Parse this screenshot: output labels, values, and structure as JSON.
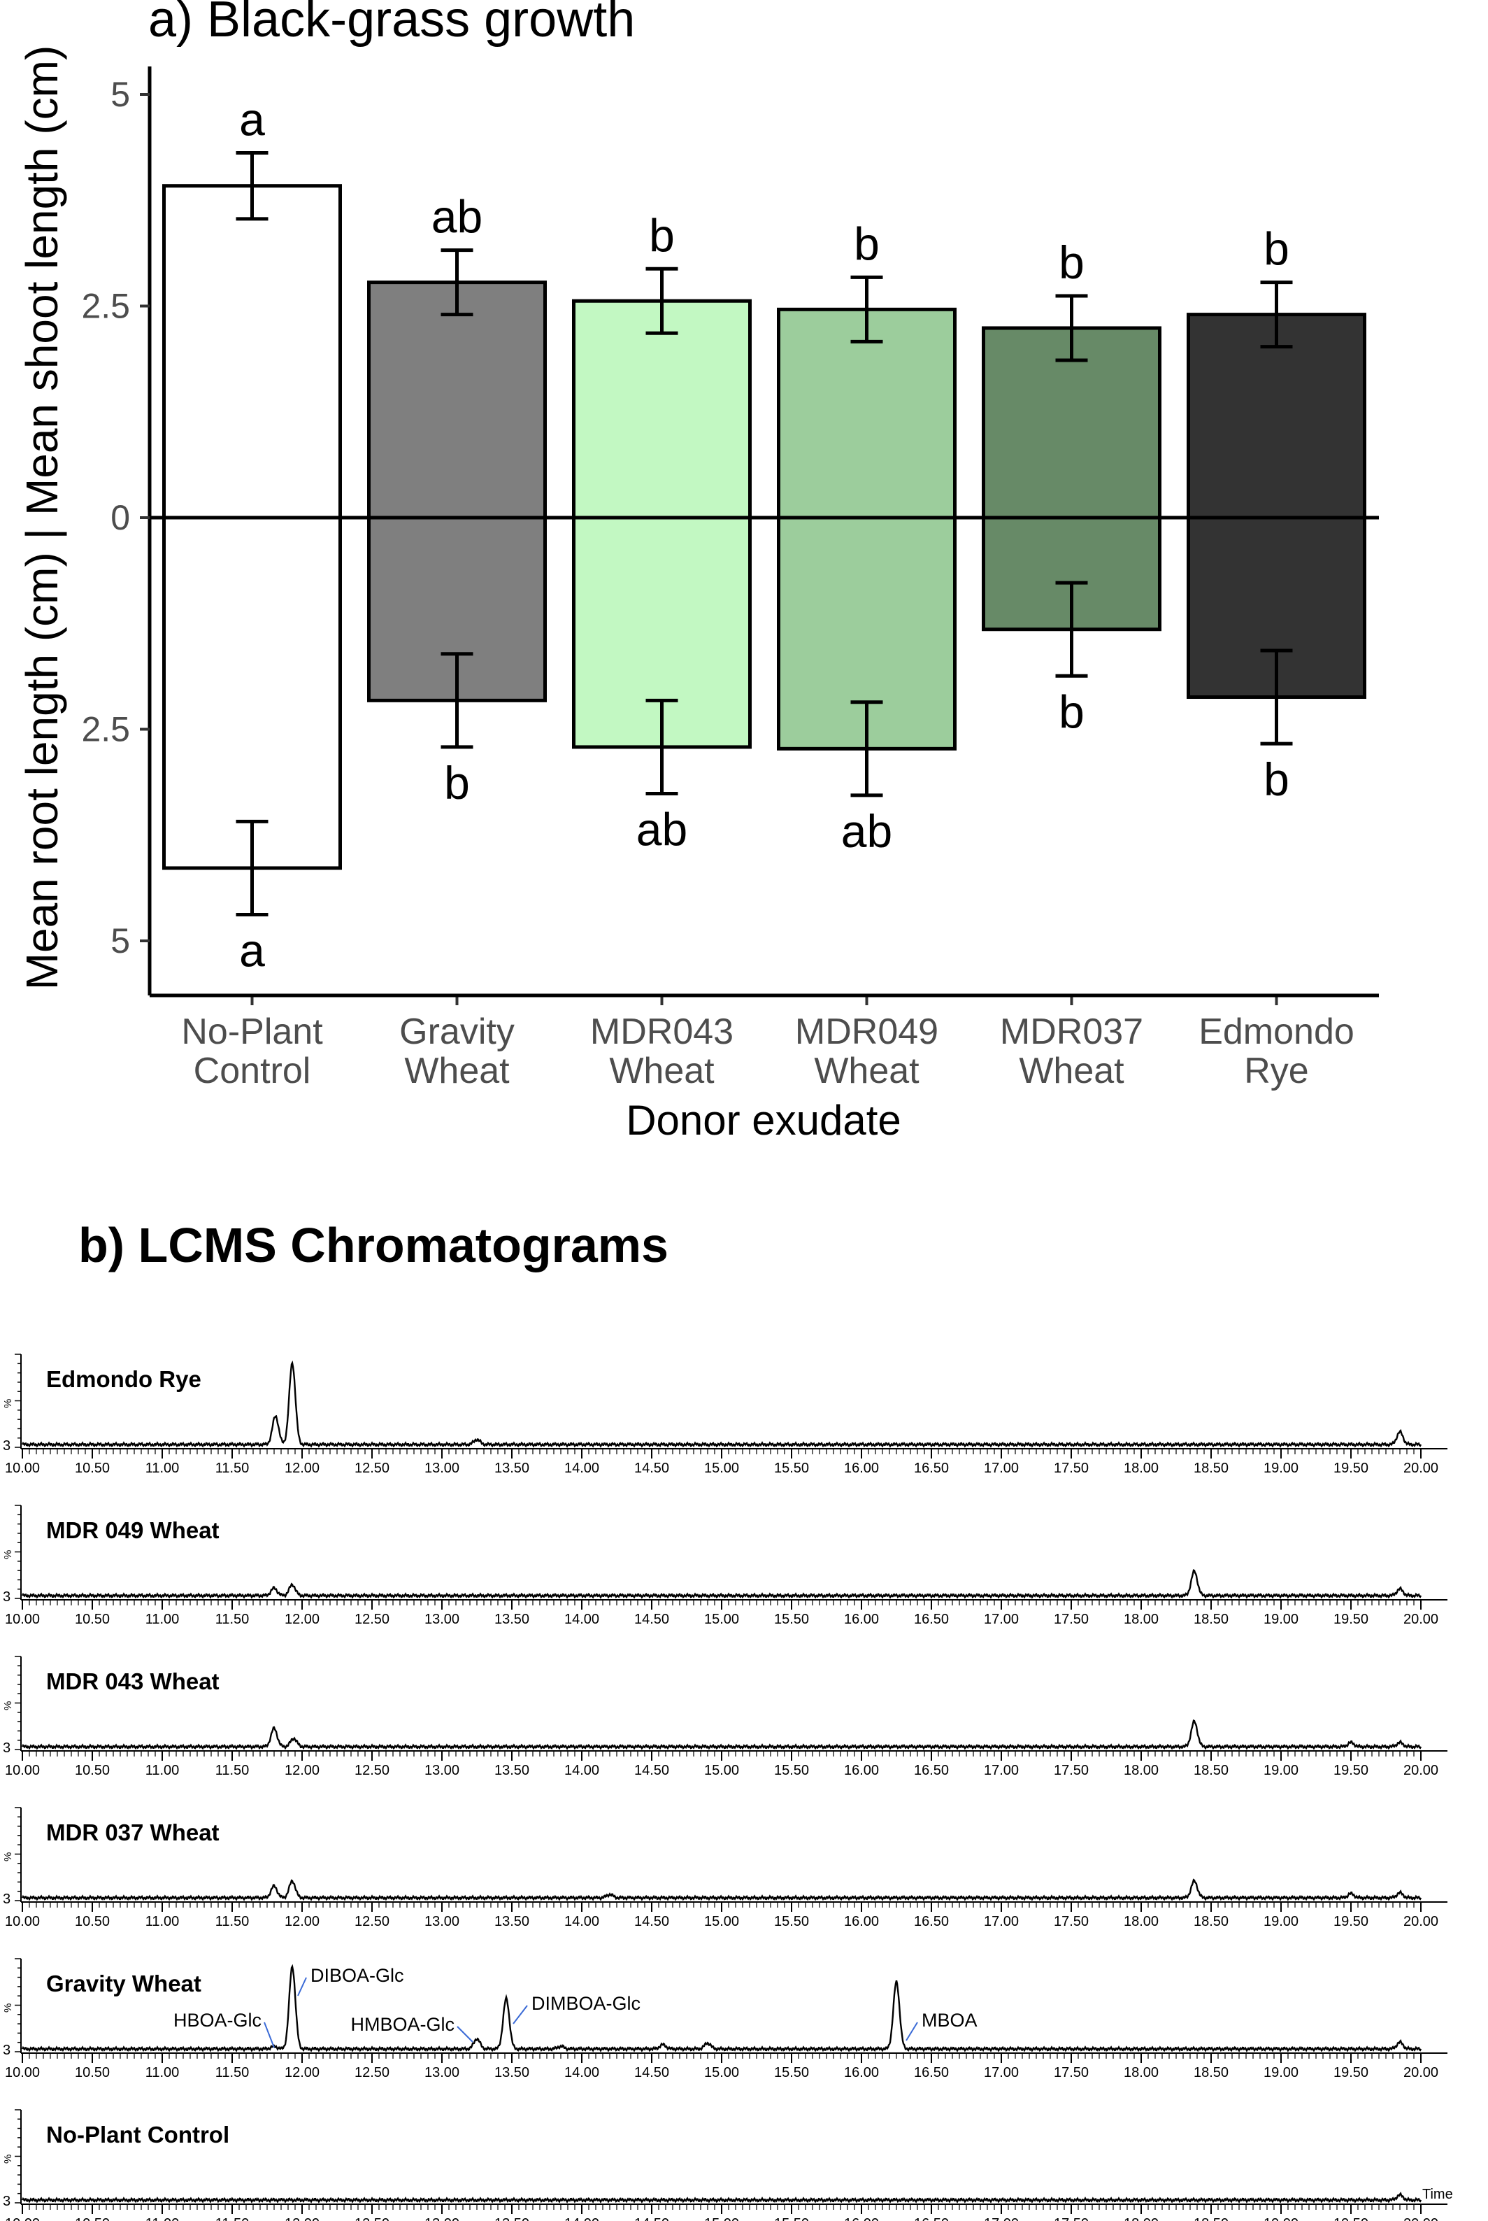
{
  "chart_data": [
    {
      "type": "bar",
      "title": "a) Black-grass growth",
      "xlabel": "Donor exudate",
      "ylabel": "Mean root length (cm) | Mean shoot length (cm)",
      "ylim": [
        -5.6,
        5.3
      ],
      "yticks": [
        {
          "value": 5,
          "label": "5"
        },
        {
          "value": 2.5,
          "label": "2.5"
        },
        {
          "value": 0,
          "label": "0"
        },
        {
          "value": -2.5,
          "label": "2.5"
        },
        {
          "value": -5,
          "label": "5"
        }
      ],
      "categories": [
        {
          "line1": "No-Plant",
          "line2": "Control"
        },
        {
          "line1": "Gravity",
          "line2": "Wheat"
        },
        {
          "line1": "MDR043",
          "line2": "Wheat"
        },
        {
          "line1": "MDR049",
          "line2": "Wheat"
        },
        {
          "line1": "MDR037",
          "line2": "Wheat"
        },
        {
          "line1": "Edmondo",
          "line2": "Rye"
        }
      ],
      "colors": [
        "#ffffff",
        "#7f7f7f",
        "#c2f8c2",
        "#9ccd9c",
        "#678a67",
        "#333333"
      ],
      "series": [
        {
          "name": "Mean shoot length (cm)",
          "values": [
            3.92,
            2.78,
            2.56,
            2.46,
            2.24,
            2.4
          ],
          "errors": [
            0.39,
            0.38,
            0.38,
            0.38,
            0.38,
            0.38
          ],
          "letters": [
            "a",
            "ab",
            "b",
            "b",
            "b",
            "b"
          ]
        },
        {
          "name": "Mean root length (cm)",
          "values": [
            -4.14,
            -2.16,
            -2.71,
            -2.73,
            -1.32,
            -2.12
          ],
          "errors": [
            0.55,
            0.55,
            0.55,
            0.55,
            0.55,
            0.55
          ],
          "letters": [
            "a",
            "b",
            "ab",
            "ab",
            "b",
            "b"
          ]
        }
      ],
      "grid": false,
      "legend": "none"
    },
    {
      "type": "line",
      "title": "b) LCMS Chromatograms",
      "xlim": [
        10.0,
        20.0
      ],
      "xtick_labels": [
        "10.00",
        "10.50",
        "11.00",
        "11.50",
        "12.00",
        "12.50",
        "13.00",
        "13.50",
        "14.00",
        "14.50",
        "15.00",
        "15.50",
        "16.00",
        "16.50",
        "17.00",
        "17.50",
        "18.00",
        "18.50",
        "19.00",
        "19.50",
        "20.00"
      ],
      "y_axis_label": "%",
      "y_min_label": "3",
      "x_unit_label": "Time",
      "panels": [
        {
          "name": "Edmondo Rye",
          "peaks": [
            [
              11.81,
              0.34
            ],
            [
              11.93,
              0.97
            ],
            [
              13.25,
              0.06
            ],
            [
              19.85,
              0.15
            ]
          ],
          "annotations": []
        },
        {
          "name": "MDR 049 Wheat",
          "peaks": [
            [
              11.8,
              0.09
            ],
            [
              11.93,
              0.13
            ],
            [
              18.38,
              0.29
            ],
            [
              19.85,
              0.08
            ]
          ],
          "annotations": []
        },
        {
          "name": "MDR 043 Wheat",
          "peaks": [
            [
              11.8,
              0.22
            ],
            [
              11.94,
              0.1
            ],
            [
              18.38,
              0.3
            ],
            [
              19.5,
              0.05
            ],
            [
              19.85,
              0.05
            ]
          ],
          "annotations": []
        },
        {
          "name": "MDR 037 Wheat",
          "peaks": [
            [
              11.8,
              0.14
            ],
            [
              11.93,
              0.2
            ],
            [
              14.2,
              0.04
            ],
            [
              18.38,
              0.2
            ],
            [
              19.5,
              0.05
            ],
            [
              19.85,
              0.06
            ]
          ],
          "annotations": []
        },
        {
          "name": "Gravity Wheat",
          "peaks": [
            [
              11.8,
              0.03
            ],
            [
              11.93,
              0.98
            ],
            [
              13.25,
              0.12
            ],
            [
              13.46,
              0.6
            ],
            [
              13.85,
              0.03
            ],
            [
              14.58,
              0.05
            ],
            [
              14.9,
              0.07
            ],
            [
              16.25,
              0.8
            ],
            [
              19.85,
              0.08
            ]
          ],
          "annotations": [
            {
              "label": "HBOA-Glc",
              "x": 11.8
            },
            {
              "label": "DIBOA-Glc",
              "x": 11.95
            },
            {
              "label": "HMBOA-Glc",
              "x": 13.25
            },
            {
              "label": "DIMBOA-Glc",
              "x": 13.49
            },
            {
              "label": "MBOA",
              "x": 16.3
            }
          ]
        },
        {
          "name": "No-Plant Control",
          "peaks": [
            [
              19.85,
              0.06
            ]
          ],
          "annotations": []
        }
      ]
    }
  ]
}
